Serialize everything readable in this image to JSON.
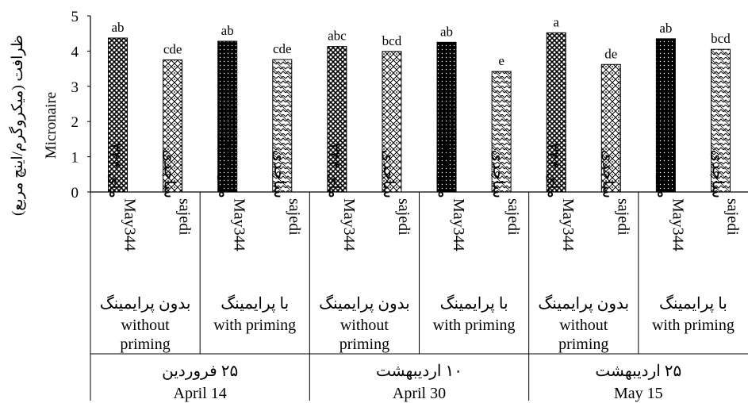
{
  "chart_data": {
    "type": "bar",
    "ylabel": {
      "fa": "ظرافت (میکروگرم/اینچ مربع)",
      "en": "Micronaire"
    },
    "ylim": [
      0,
      5
    ],
    "yticks": [
      "0",
      "1",
      "2",
      "3",
      "4",
      "5"
    ],
    "dates": [
      {
        "fa": "۲۵ فروردین",
        "en": "April 14"
      },
      {
        "fa": "۱۰ اردیبهشت",
        "en": "April 30"
      },
      {
        "fa": "۲۵ اردیبهشت",
        "en": "May 15"
      }
    ],
    "treatments": [
      {
        "fa": "بدون پرایمینگ",
        "en": [
          "without",
          "priming"
        ]
      },
      {
        "fa": "با پرایمینگ",
        "en": [
          "with priming"
        ]
      },
      {
        "fa": "بدون پرایمینگ",
        "en": [
          "without",
          "priming"
        ]
      },
      {
        "fa": "با پرایمینگ",
        "en": [
          "with priming"
        ]
      },
      {
        "fa": "بدون پرایمینگ",
        "en": [
          "without",
          "priming"
        ]
      },
      {
        "fa": "با پرایمینگ",
        "en": [
          "with priming"
        ]
      }
    ],
    "cultivars": {
      "may344": {
        "fa": "مای ۳۴۴",
        "en": "May344"
      },
      "sajedi": {
        "fa": "ساجدی",
        "en": "sajedi"
      }
    },
    "bars": [
      {
        "cultivar": "may344",
        "value": 4.37,
        "letter": "ab",
        "pattern": "crosshatch"
      },
      {
        "cultivar": "sajedi",
        "value": 3.75,
        "letter": "cde",
        "pattern": "diamond"
      },
      {
        "cultivar": "may344",
        "value": 4.28,
        "letter": "ab",
        "pattern": "dots"
      },
      {
        "cultivar": "sajedi",
        "value": 3.76,
        "letter": "cde",
        "pattern": "wave"
      },
      {
        "cultivar": "may344",
        "value": 4.13,
        "letter": "abc",
        "pattern": "crosshatch"
      },
      {
        "cultivar": "sajedi",
        "value": 3.99,
        "letter": "bcd",
        "pattern": "diamond"
      },
      {
        "cultivar": "may344",
        "value": 4.25,
        "letter": "ab",
        "pattern": "dots"
      },
      {
        "cultivar": "sajedi",
        "value": 3.42,
        "letter": "e",
        "pattern": "wave"
      },
      {
        "cultivar": "may344",
        "value": 4.52,
        "letter": "a",
        "pattern": "crosshatch"
      },
      {
        "cultivar": "sajedi",
        "value": 3.62,
        "letter": "de",
        "pattern": "diamond"
      },
      {
        "cultivar": "may344",
        "value": 4.35,
        "letter": "ab",
        "pattern": "dots"
      },
      {
        "cultivar": "sajedi",
        "value": 4.05,
        "letter": "bcd",
        "pattern": "wave"
      }
    ],
    "grid": false,
    "legend": "none"
  }
}
